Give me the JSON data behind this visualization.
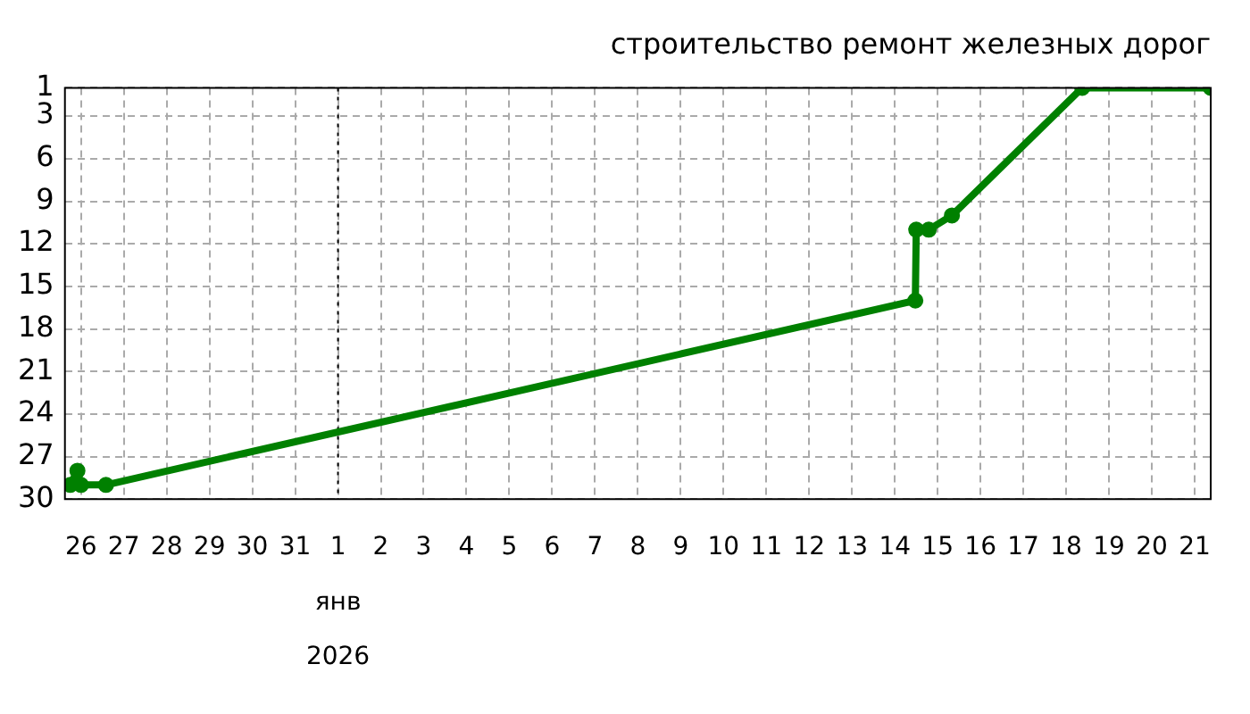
{
  "chart_data": {
    "type": "line",
    "title": "строительство ремонт железных дорог",
    "x": [
      "2025-12-25T18:00",
      "2025-12-25T22:00",
      "2025-12-26T00:00",
      "2025-12-26T14:00",
      "2026-01-14T11:30",
      "2026-01-14T12:00",
      "2026-01-14T19:00",
      "2026-01-15T08:00",
      "2026-01-18T09:00",
      "2026-01-21T09:00"
    ],
    "series": [
      {
        "color": "#008000",
        "values": [
          29,
          28,
          29,
          29,
          16,
          11,
          11,
          10,
          1,
          1
        ]
      }
    ],
    "xlim": [
      "2025-12-25T15:00",
      "2026-01-21T09:00"
    ],
    "xticks": [
      {
        "value": "2025-12-26",
        "label": "26"
      },
      {
        "value": "2025-12-27",
        "label": "27"
      },
      {
        "value": "2025-12-28",
        "label": "28"
      },
      {
        "value": "2025-12-29",
        "label": "29"
      },
      {
        "value": "2025-12-30",
        "label": "30"
      },
      {
        "value": "2025-12-31",
        "label": "31"
      },
      {
        "value": "2026-01-01",
        "label": "1\nянв\n2026"
      },
      {
        "value": "2026-01-02",
        "label": "2"
      },
      {
        "value": "2026-01-03",
        "label": "3"
      },
      {
        "value": "2026-01-04",
        "label": "4"
      },
      {
        "value": "2026-01-05",
        "label": "5"
      },
      {
        "value": "2026-01-06",
        "label": "6"
      },
      {
        "value": "2026-01-07",
        "label": "7"
      },
      {
        "value": "2026-01-08",
        "label": "8"
      },
      {
        "value": "2026-01-09",
        "label": "9"
      },
      {
        "value": "2026-01-10",
        "label": "10"
      },
      {
        "value": "2026-01-11",
        "label": "11"
      },
      {
        "value": "2026-01-12",
        "label": "12"
      },
      {
        "value": "2026-01-13",
        "label": "13"
      },
      {
        "value": "2026-01-14",
        "label": "14"
      },
      {
        "value": "2026-01-15",
        "label": "15"
      },
      {
        "value": "2026-01-16",
        "label": "16"
      },
      {
        "value": "2026-01-17",
        "label": "17"
      },
      {
        "value": "2026-01-18",
        "label": "18"
      },
      {
        "value": "2026-01-19",
        "label": "19"
      },
      {
        "value": "2026-01-20",
        "label": "20"
      },
      {
        "value": "2026-01-21",
        "label": "21"
      }
    ],
    "ylim": [
      30,
      1
    ],
    "yticks": [
      1,
      3,
      6,
      9,
      12,
      15,
      18,
      21,
      24,
      27,
      30
    ],
    "ref_lines": [
      {
        "axis": "x",
        "value": "2026-01-01",
        "color": "#000000",
        "line_style": "dotted"
      }
    ],
    "grid": true,
    "marker": "circle",
    "line_style": "solid",
    "legend": false
  }
}
